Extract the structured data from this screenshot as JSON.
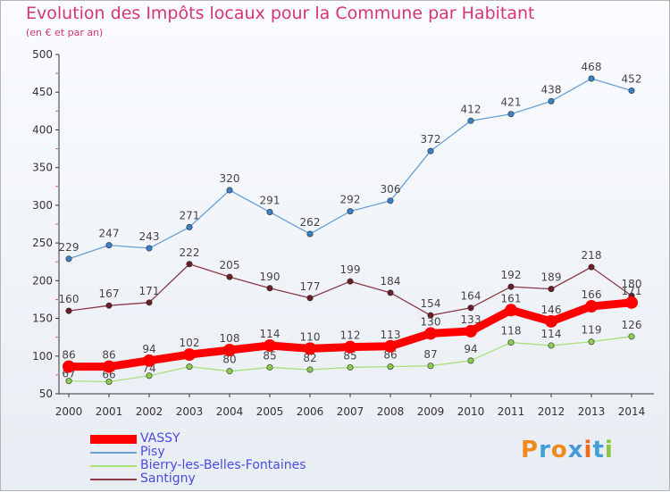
{
  "title": "Evolution des Impôts locaux pour la Commune par Habitant",
  "subtitle": "(en € et par an)",
  "logo_text": "Proxiti",
  "chart_data": {
    "type": "line",
    "x": [
      2000,
      2001,
      2002,
      2003,
      2004,
      2005,
      2006,
      2007,
      2008,
      2009,
      2010,
      2011,
      2012,
      2013,
      2014
    ],
    "ylim": [
      50,
      500
    ],
    "yticks": [
      50,
      100,
      150,
      200,
      250,
      300,
      350,
      400,
      450,
      500
    ],
    "grid": false,
    "legend_position": "bottom-left",
    "series": [
      {
        "name": "Pisy",
        "color": "#6aa0d4",
        "marker": "#3a82c8",
        "values": [
          229,
          247,
          243,
          271,
          320,
          291,
          262,
          292,
          306,
          372,
          412,
          421,
          438,
          468,
          452
        ]
      },
      {
        "name": "Santigny",
        "color": "#8b3a46",
        "marker": "#6b1e28",
        "values": [
          160,
          167,
          171,
          222,
          205,
          190,
          177,
          199,
          184,
          154,
          164,
          192,
          189,
          218,
          180
        ]
      },
      {
        "name": "Bierry-les-Belles-Fontaines",
        "color": "#a8e07a",
        "marker": "#8ccc50",
        "values": [
          67,
          66,
          74,
          86,
          80,
          85,
          82,
          85,
          86,
          87,
          94,
          118,
          114,
          119,
          126
        ]
      },
      {
        "name": "VASSY",
        "color": "#ff0000",
        "marker": "#ff0000",
        "values": [
          86,
          86,
          94,
          102,
          108,
          114,
          110,
          112,
          113,
          130,
          133,
          161,
          146,
          166,
          171
        ]
      }
    ]
  }
}
